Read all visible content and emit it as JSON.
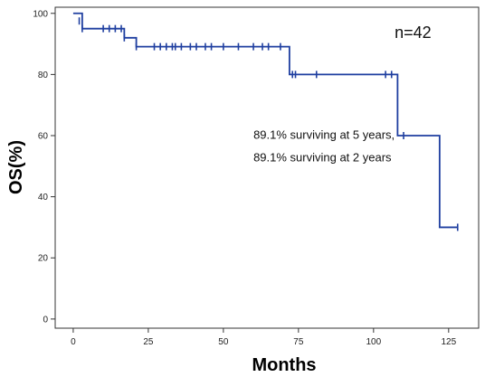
{
  "chart_data": {
    "type": "line",
    "xlabel": "Months",
    "ylabel": "OS(%)",
    "xlim": [
      -6,
      135
    ],
    "ylim": [
      -3,
      102
    ],
    "xticks": [
      0,
      25,
      50,
      75,
      100,
      125
    ],
    "yticks": [
      0,
      20,
      40,
      60,
      80,
      100
    ],
    "grid": false,
    "line_color": "#1f3fa0",
    "series": [
      {
        "step_points": [
          [
            0,
            100
          ],
          [
            3,
            100
          ],
          [
            3,
            95
          ],
          [
            17,
            95
          ],
          [
            17,
            92
          ],
          [
            21,
            92
          ],
          [
            21,
            89.1
          ],
          [
            72,
            89.1
          ],
          [
            72,
            80
          ],
          [
            108,
            80
          ],
          [
            108,
            60
          ],
          [
            122,
            60
          ],
          [
            122,
            30
          ],
          [
            128,
            30
          ]
        ],
        "censored": [
          [
            2,
            97.5
          ],
          [
            3,
            95
          ],
          [
            10,
            95
          ],
          [
            12,
            95
          ],
          [
            14,
            95
          ],
          [
            16,
            95
          ],
          [
            17,
            92
          ],
          [
            21,
            89.1
          ],
          [
            27,
            89.1
          ],
          [
            29,
            89.1
          ],
          [
            31,
            89.1
          ],
          [
            33,
            89.1
          ],
          [
            34,
            89.1
          ],
          [
            36,
            89.1
          ],
          [
            39,
            89.1
          ],
          [
            41,
            89.1
          ],
          [
            44,
            89.1
          ],
          [
            46,
            89.1
          ],
          [
            50,
            89.1
          ],
          [
            55,
            89.1
          ],
          [
            60,
            89.1
          ],
          [
            63,
            89.1
          ],
          [
            65,
            89.1
          ],
          [
            69,
            89.1
          ],
          [
            73,
            80
          ],
          [
            74,
            80
          ],
          [
            81,
            80
          ],
          [
            104,
            80
          ],
          [
            106,
            80
          ],
          [
            110,
            60
          ],
          [
            128,
            30
          ]
        ]
      }
    ],
    "annotations": [
      {
        "text": "n=42",
        "x": 107,
        "y": 92,
        "size": 18
      },
      {
        "text": "89.1% surviving at 5 years,",
        "x": 60,
        "y": 59,
        "size": 13
      },
      {
        "text": "89.1% surviving at 2 years",
        "x": 60,
        "y": 51.5,
        "size": 13
      }
    ]
  }
}
